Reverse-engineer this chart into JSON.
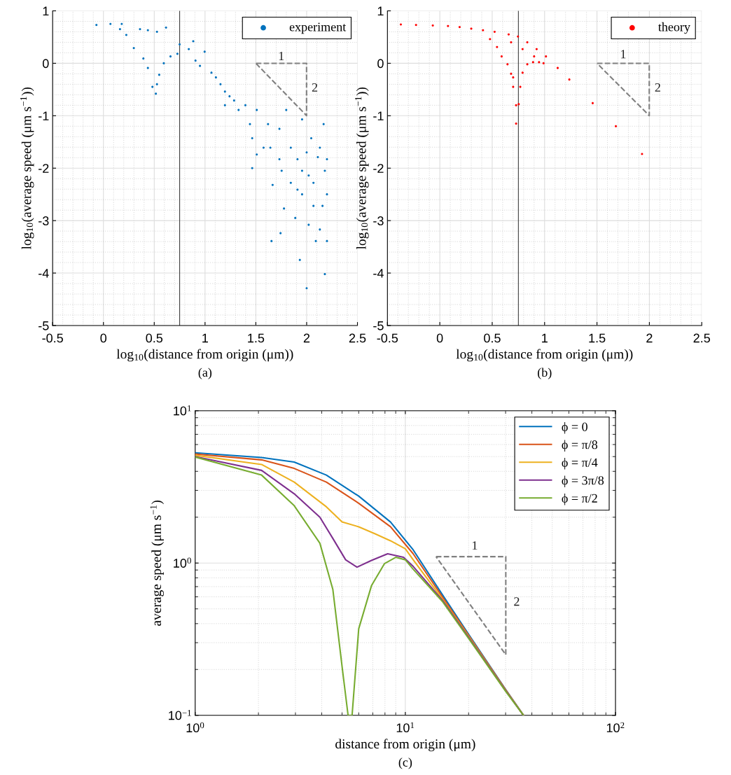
{
  "chart_data": [
    {
      "type": "scatter",
      "xlabel": "log$_{10}$(distance from origin (μm))",
      "ylabel": "log$_{10}$(average speed (μm s$^{−1}$))",
      "xlim": [
        -0.5,
        2.5
      ],
      "xticks": [
        -0.5,
        0,
        0.5,
        1,
        1.5,
        2,
        2.5
      ],
      "ylim": [
        -5,
        1
      ],
      "yticks": [
        -5,
        -4,
        -3,
        -2,
        -1,
        0,
        1
      ],
      "grid": true,
      "legend": "top right",
      "marker": "circle",
      "ref_lines": [
        {
          "axis": "x",
          "value": 0.75,
          "color": "#404040"
        }
      ],
      "annotations": [
        "1",
        "2",
        "(a)"
      ],
      "series": [
        {
          "name": "experiment",
          "color": "#0072bd",
          "x": [
            -0.069,
            0.069,
            0.18,
            0.163,
            0.225,
            0.299,
            0.36,
            0.4375,
            0.527,
            0.616,
            0.393,
            0.4375,
            0.482,
            0.516,
            0.527,
            0.549,
            0.594,
            0.66,
            0.728,
            0.75,
            0.84,
            0.884,
            0.996,
            0.95,
            1.063,
            1.152,
            1.196,
            1.196,
            1.286,
            1.397,
            1.509,
            1.464,
            1.509,
            1.464,
            1.62,
            1.643,
            1.665,
            1.732,
            1.732,
            1.799,
            1.777,
            1.844,
            1.844,
            1.888,
            1.955,
            1.955,
            1.955,
            2.02,
            2.0,
            2.045,
            2.067,
            2.09,
            2.167,
            2.179,
            2.2,
            2.179,
            2.156,
            2.2,
            1.654,
            1.743,
            1.933,
            1.91,
            2.0,
            2.11,
            2.02,
            1.91,
            1.754,
            1.576,
            1.442,
            1.33,
            1.241,
            1.107,
            0.906,
            2.067,
            2.13,
            2.2,
            2.13
          ],
          "values": [
            0.73,
            0.75,
            0.75,
            0.65,
            0.54,
            0.29,
            0.65,
            0.63,
            0.6,
            0.68,
            0.09,
            -0.09,
            -0.45,
            -0.58,
            -0.4,
            -0.22,
            0,
            0.13,
            0.18,
            0.36,
            0.27,
            0.42,
            0.22,
            -0.05,
            -0.18,
            -0.4,
            -0.54,
            -0.8,
            -0.71,
            -0.8,
            -0.89,
            -1.43,
            -1.74,
            -2.0,
            -1.16,
            -1.61,
            -2.32,
            -1.25,
            -1.83,
            -0.89,
            -2.77,
            -1.61,
            -2.28,
            -2.95,
            -1.07,
            -2.05,
            -2.5,
            -3.08,
            -4.29,
            -1.43,
            -2.28,
            -3.39,
            -1.16,
            -2.05,
            -1.83,
            -4.02,
            -2.72,
            -3.39,
            -3.39,
            -3.24,
            -3.75,
            -1.83,
            -1.7,
            -1.79,
            -2.14,
            -2.41,
            -2.05,
            -1.61,
            -1.16,
            -0.89,
            -0.63,
            -0.27,
            0.05,
            -2.72,
            -3.17,
            -2.5,
            -1.61
          ]
        }
      ]
    },
    {
      "type": "scatter",
      "xlabel": "log$_{10}$(distance from origin (μm))",
      "ylabel": "log$_{10}$(average speed (μm s$^{−1}$))",
      "xlim": [
        -0.5,
        2.5
      ],
      "xticks": [
        -0.5,
        0,
        0.5,
        1,
        1.5,
        2,
        2.5
      ],
      "ylim": [
        -5,
        1
      ],
      "yticks": [
        -5,
        -4,
        -3,
        -2,
        -1,
        0,
        1
      ],
      "grid": true,
      "legend": "top right",
      "marker": "circle",
      "ref_lines": [
        {
          "axis": "x",
          "value": 0.75,
          "color": "#404040"
        }
      ],
      "annotations": [
        "1",
        "2",
        "(b)"
      ],
      "series": [
        {
          "name": "theory",
          "color": "#ff0000",
          "x": [
            -0.372,
            -0.227,
            -0.067,
            0.078,
            0.189,
            0.3,
            0.412,
            0.523,
            0.657,
            0.746,
            0.835,
            0.924,
            1.013,
            1.125,
            1.236,
            1.459,
            1.68,
            1.93,
            0.479,
            0.546,
            0.59,
            0.646,
            0.68,
            0.7,
            0.728,
            0.728,
            0.753,
            0.768,
            0.79,
            0.835,
            0.89,
            0.947,
            0.99,
            0.7,
            0.79,
            0.68,
            0.9
          ],
          "values": [
            0.74,
            0.73,
            0.72,
            0.71,
            0.69,
            0.66,
            0.63,
            0.6,
            0.55,
            0.51,
            0.4,
            0.27,
            0.13,
            -0.09,
            -0.31,
            -0.76,
            -1.2,
            -1.73,
            0.46,
            0.31,
            0.13,
            -0.02,
            -0.2,
            -0.45,
            -0.8,
            -1.15,
            -0.78,
            -0.45,
            -0.18,
            -0.02,
            0.02,
            0.02,
            0,
            -0.27,
            0.27,
            0.4,
            0.13
          ]
        }
      ]
    },
    {
      "type": "line",
      "xlabel": "distance from origin (μm)",
      "ylabel": "average speed (μm s$^{−1}$)",
      "log": "xy",
      "xlim": [
        1,
        100
      ],
      "xticks": [
        {
          "value": 1,
          "label": "10$^{0}$"
        },
        {
          "value": 10,
          "label": "10$^{1}$"
        },
        {
          "value": 100,
          "label": "10$^{2}$"
        }
      ],
      "ylim": [
        0.1,
        10
      ],
      "yticks": [
        {
          "value": 0.1,
          "label": "10$^{−1}$"
        },
        {
          "value": 1,
          "label": "10$^{0}$"
        },
        {
          "value": 10,
          "label": "10$^{1}$"
        }
      ],
      "grid": true,
      "legend": "top right",
      "marker": "none",
      "annotations": [
        "1",
        "2",
        "(c)"
      ],
      "series": [
        {
          "name": "ϕ = 0",
          "color": "#0072bd",
          "x": [
            1,
            2.07,
            2.96,
            4.21,
            6.0,
            8.5,
            10.9,
            15,
            20,
            30,
            36.5
          ],
          "values": [
            5.3,
            4.93,
            4.6,
            3.78,
            2.75,
            1.86,
            1.22,
            0.62,
            0.34,
            0.148,
            0.1
          ]
        },
        {
          "name": "ϕ = π/8",
          "color": "#d95319",
          "x": [
            1,
            2.07,
            2.96,
            4.21,
            6.0,
            8.5,
            10.9,
            15,
            20,
            30,
            36.5
          ],
          "values": [
            5.2,
            4.76,
            4.18,
            3.4,
            2.47,
            1.73,
            1.15,
            0.6,
            0.335,
            0.147,
            0.1
          ]
        },
        {
          "name": "ϕ = π/4",
          "color": "#edb120",
          "x": [
            1,
            2.07,
            2.96,
            4.21,
            5.0,
            6.0,
            7.15,
            8.5,
            10,
            10.9,
            15,
            20,
            30,
            36.5
          ],
          "values": [
            5.1,
            4.44,
            3.4,
            2.34,
            1.86,
            1.73,
            1.56,
            1.4,
            1.24,
            1.05,
            0.58,
            0.33,
            0.146,
            0.1
          ]
        },
        {
          "name": "ϕ = 3π/8",
          "color": "#7e2f8e",
          "x": [
            1,
            2.07,
            2.96,
            3.92,
            4.52,
            5.2,
            5.89,
            6.9,
            8.24,
            9.8,
            10.9,
            15,
            20,
            30,
            36.5
          ],
          "values": [
            5.0,
            4.06,
            2.85,
            2.0,
            1.45,
            1.05,
            0.94,
            1.04,
            1.15,
            1.09,
            0.95,
            0.57,
            0.325,
            0.145,
            0.1
          ]
        },
        {
          "name": "ϕ = π/2",
          "color": "#77ac30",
          "x": [
            1,
            2.07,
            2.96,
            3.92,
            4.52,
            5.02,
            5.34,
            5.58,
            6.0,
            6.9,
            7.95,
            9.0,
            10,
            10.9,
            15,
            20,
            30,
            36.5
          ],
          "values": [
            4.97,
            3.78,
            2.38,
            1.35,
            0.67,
            0.2,
            0.1,
            0.1,
            0.37,
            0.71,
            0.99,
            1.09,
            1.05,
            0.91,
            0.56,
            0.32,
            0.144,
            0.1
          ]
        }
      ]
    }
  ]
}
